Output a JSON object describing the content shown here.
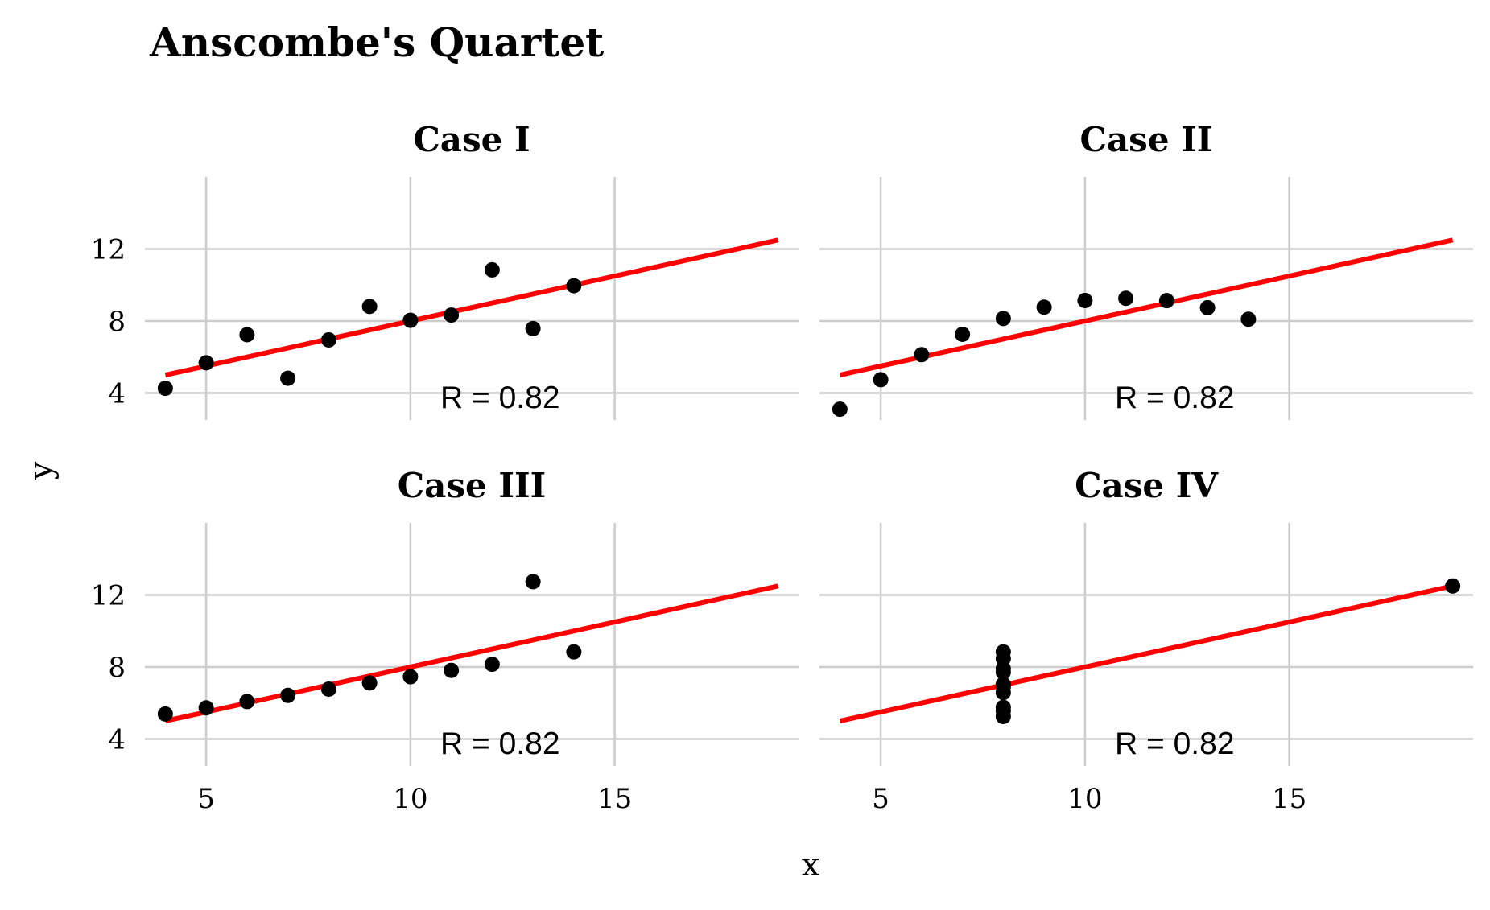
{
  "chart_data": {
    "type": "scatter",
    "title": "Anscombe's Quartet",
    "xlabel": "x",
    "ylabel": "y",
    "xlim": [
      3.5,
      19.5
    ],
    "ylim": [
      2.5,
      16
    ],
    "x_ticks": [
      5,
      10,
      15
    ],
    "x_tick_labels": [
      "5",
      "10",
      "15"
    ],
    "y_ticks": [
      4,
      8,
      12
    ],
    "y_tick_labels": [
      "4",
      "8",
      "12"
    ],
    "grid": true,
    "legend": "none",
    "colors": {
      "points": "#000000",
      "fit_line": "#ff0000",
      "grid": "#cccccc"
    },
    "fit_line": {
      "x0": 4,
      "x1": 19,
      "intercept": 3.0,
      "slope": 0.5
    },
    "panels": [
      {
        "name": "Case I",
        "annotation": "R =  0.82",
        "x": [
          10,
          8,
          13,
          9,
          11,
          14,
          6,
          4,
          12,
          7,
          5
        ],
        "y": [
          8.04,
          6.95,
          7.58,
          8.81,
          8.33,
          9.96,
          7.24,
          4.26,
          10.84,
          4.82,
          5.68
        ]
      },
      {
        "name": "Case II",
        "annotation": "R =  0.82",
        "x": [
          10,
          8,
          13,
          9,
          11,
          14,
          6,
          4,
          12,
          7,
          5
        ],
        "y": [
          9.14,
          8.14,
          8.74,
          8.77,
          9.26,
          8.1,
          6.13,
          3.1,
          9.13,
          7.26,
          4.74
        ]
      },
      {
        "name": "Case III",
        "annotation": "R =  0.82",
        "x": [
          10,
          8,
          13,
          9,
          11,
          14,
          6,
          4,
          12,
          7,
          5
        ],
        "y": [
          7.46,
          6.77,
          12.74,
          7.11,
          7.81,
          8.84,
          6.08,
          5.39,
          8.15,
          6.42,
          5.73
        ]
      },
      {
        "name": "Case IV",
        "annotation": "R =  0.82",
        "x": [
          8,
          8,
          8,
          8,
          8,
          8,
          8,
          19,
          8,
          8,
          8
        ],
        "y": [
          6.58,
          5.76,
          7.71,
          8.84,
          8.47,
          7.04,
          5.25,
          12.5,
          5.56,
          7.91,
          6.89
        ]
      }
    ]
  }
}
